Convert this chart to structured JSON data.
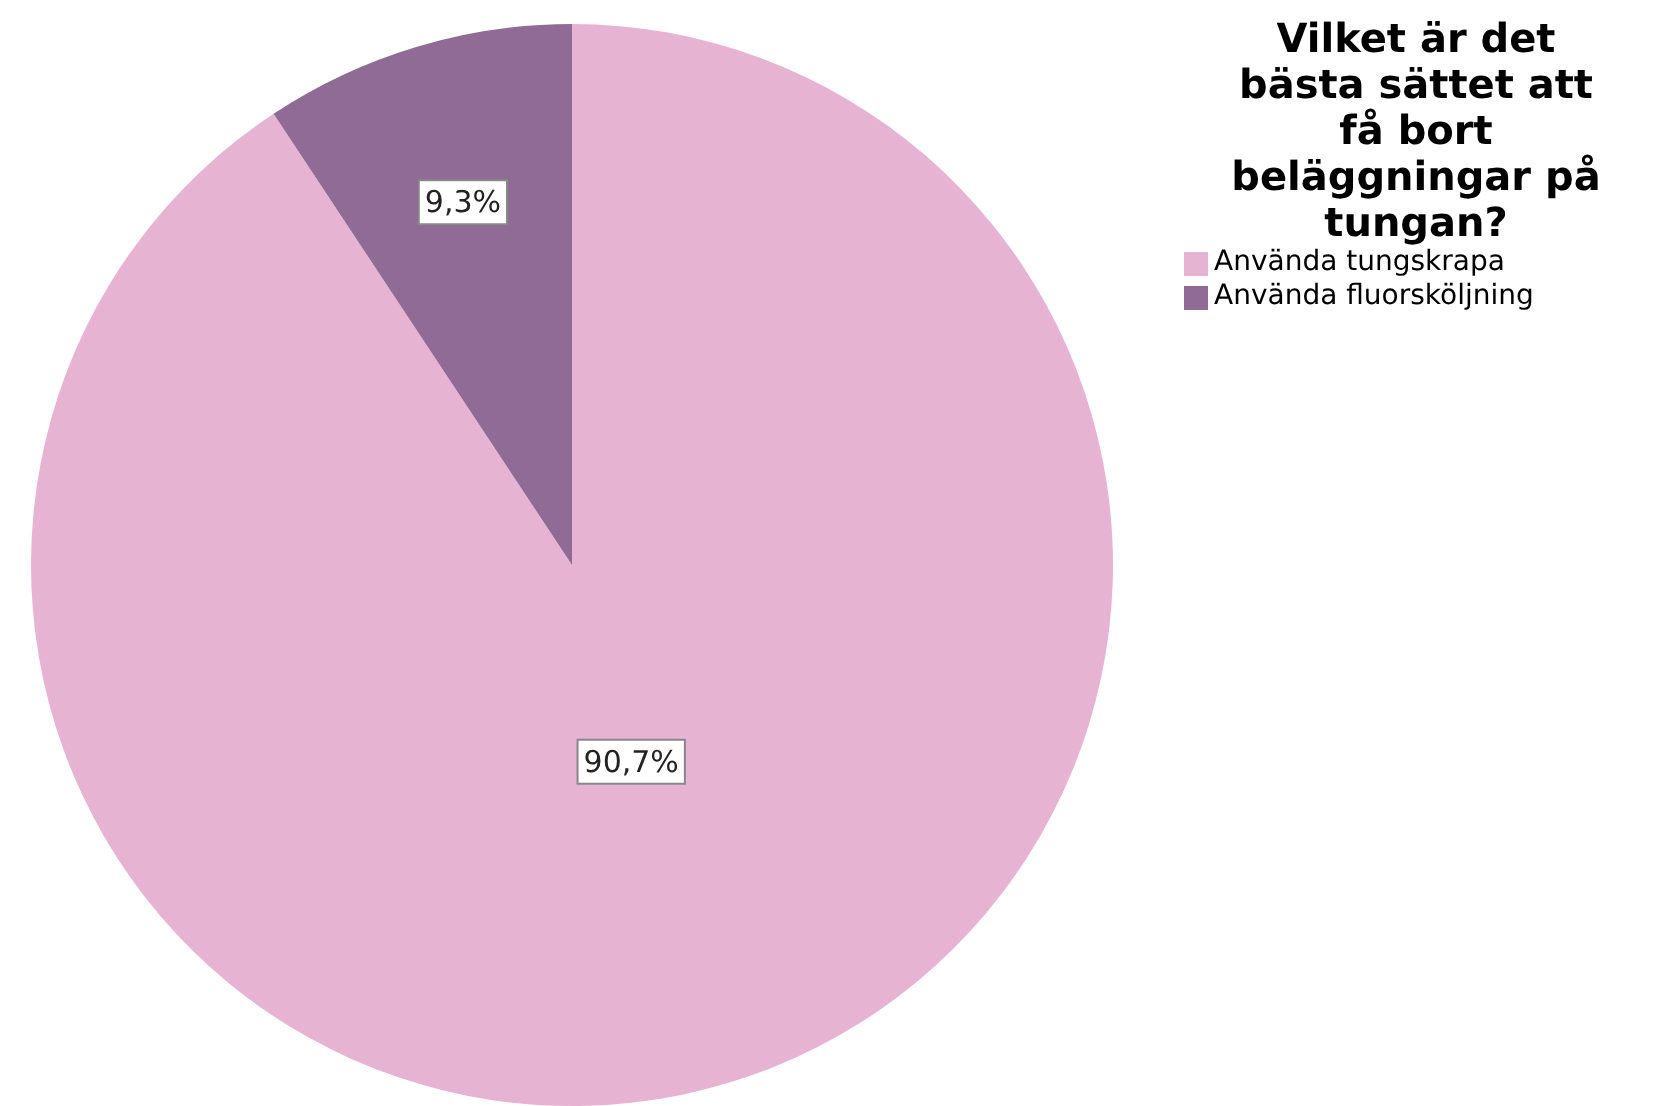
{
  "chart_data": {
    "type": "pie",
    "title": "Vilket är det bästa sättet att få bort beläggningar på tungan?",
    "categories": [
      "Använda tungskrapa",
      "Använda fluorsköljning"
    ],
    "values": [
      90.7,
      9.3
    ],
    "colors": [
      "#e6b3d3",
      "#8f6b95"
    ],
    "value_labels": [
      "90,7%",
      "9,3%"
    ],
    "legend": "top right"
  }
}
